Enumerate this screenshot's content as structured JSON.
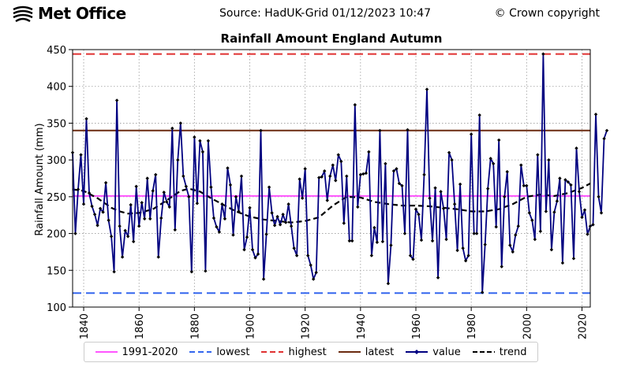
{
  "header": {
    "logo_text": "Met Office",
    "source": "Source: HadUK-Grid 01/12/2023 10:47",
    "copyright": "© Crown copyright"
  },
  "chart_data": {
    "type": "line",
    "title": "Rainfall Amount England Autumn",
    "xlabel": "",
    "ylabel": "Rainfall Amount (mm)",
    "xlim": [
      1836,
      2023
    ],
    "ylim": [
      100,
      450
    ],
    "xticks": [
      1840,
      1860,
      1880,
      1900,
      1920,
      1940,
      1960,
      1980,
      2000,
      2020
    ],
    "yticks": [
      100,
      150,
      200,
      250,
      300,
      350,
      400,
      450
    ],
    "grid": true,
    "legend_placement": "bottom",
    "reference_lines": [
      {
        "name": "1991-2020",
        "value": 251,
        "color": "#ff55ff",
        "style": "solid"
      },
      {
        "name": "lowest",
        "value": 119,
        "color": "#3366ee",
        "style": "dashed"
      },
      {
        "name": "highest",
        "value": 444,
        "color": "#e03030",
        "style": "dashed"
      },
      {
        "name": "latest",
        "value": 340,
        "color": "#6b2a10",
        "style": "solid"
      }
    ],
    "series": [
      {
        "name": "value",
        "color": "#000080",
        "x_start": 1836,
        "values": [
          310,
          200,
          260,
          307,
          240,
          356,
          255,
          237,
          226,
          211,
          234,
          229,
          269,
          218,
          196,
          148,
          381,
          210,
          168,
          204,
          196,
          239,
          189,
          264,
          210,
          242,
          220,
          275,
          220,
          258,
          280,
          168,
          221,
          256,
          243,
          236,
          343,
          205,
          300,
          350,
          278,
          264,
          250,
          148,
          331,
          241,
          326,
          311,
          149,
          326,
          263,
          221,
          209,
          202,
          240,
          220,
          289,
          266,
          198,
          250,
          230,
          278,
          178,
          195,
          235,
          178,
          167,
          172,
          340,
          138,
          199,
          263,
          228,
          211,
          223,
          212,
          226,
          215,
          240,
          210,
          180,
          170,
          274,
          248,
          288,
          170,
          157,
          138,
          147,
          276,
          277,
          285,
          245,
          278,
          293,
          272,
          307,
          298,
          214,
          278,
          190,
          190,
          375,
          236,
          280,
          281,
          282,
          311,
          170,
          208,
          188,
          340,
          189,
          295,
          132,
          184,
          285,
          288,
          268,
          265,
          200,
          341,
          170,
          165,
          233,
          226,
          191,
          280,
          396,
          248,
          190,
          262,
          140,
          257,
          234,
          192,
          310,
          300,
          240,
          177,
          267,
          180,
          163,
          170,
          335,
          200,
          200,
          361,
          120,
          185,
          261,
          302,
          295,
          209,
          327,
          155,
          250,
          284,
          184,
          175,
          198,
          210,
          293,
          265,
          265,
          228,
          218,
          192,
          307,
          203,
          444,
          230,
          300,
          178,
          229,
          244,
          275,
          160,
          273,
          270,
          266,
          166,
          316,
          257,
          222,
          232,
          199,
          210,
          212,
          362,
          250,
          228,
          329,
          340
        ]
      },
      {
        "name": "trend",
        "color": "#000000",
        "x": [
          1836,
          1840,
          1845,
          1850,
          1853,
          1856,
          1860,
          1865,
          1870,
          1875,
          1878,
          1882,
          1886,
          1890,
          1895,
          1900,
          1905,
          1910,
          1915,
          1920,
          1925,
          1930,
          1935,
          1940,
          1945,
          1950,
          1955,
          1960,
          1965,
          1970,
          1975,
          1980,
          1985,
          1990,
          1995,
          2000,
          2005,
          2010,
          2015,
          2020,
          2023
        ],
        "values": [
          260,
          258,
          248,
          235,
          230,
          227,
          228,
          233,
          245,
          258,
          261,
          257,
          248,
          240,
          230,
          223,
          219,
          217,
          215,
          217,
          222,
          238,
          250,
          249,
          243,
          240,
          238,
          238,
          237,
          235,
          233,
          230,
          230,
          233,
          240,
          250,
          253,
          251,
          255,
          262,
          268
        ]
      }
    ]
  }
}
